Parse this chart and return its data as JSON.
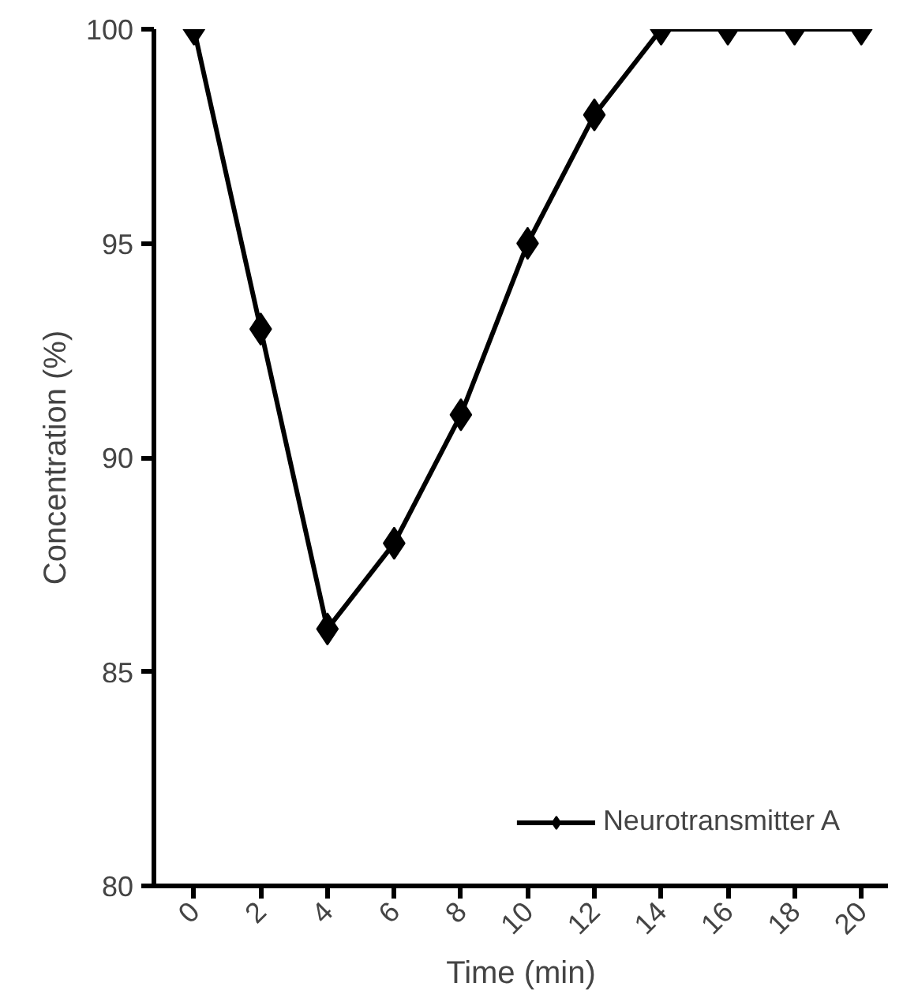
{
  "chart_data": {
    "type": "line",
    "xlabel": "Time (min)",
    "ylabel": "Concentration (%)",
    "x": [
      0,
      2,
      4,
      6,
      8,
      10,
      12,
      14,
      16,
      18,
      20
    ],
    "series": [
      {
        "name": "Neurotransmitter A",
        "color": "#000000",
        "values": [
          100,
          93,
          86,
          88,
          91,
          95,
          98,
          100,
          100,
          100,
          100
        ]
      }
    ],
    "xlim": [
      -1.2,
      20.8
    ],
    "xticks": [
      0,
      2,
      4,
      6,
      8,
      10,
      12,
      14,
      16,
      18,
      20
    ],
    "ylim": [
      80,
      100
    ],
    "yticks": [
      80,
      85,
      90,
      95,
      100
    ],
    "grid": false,
    "legend": "bottom right",
    "marker": "diamond",
    "line_style": "solid"
  }
}
